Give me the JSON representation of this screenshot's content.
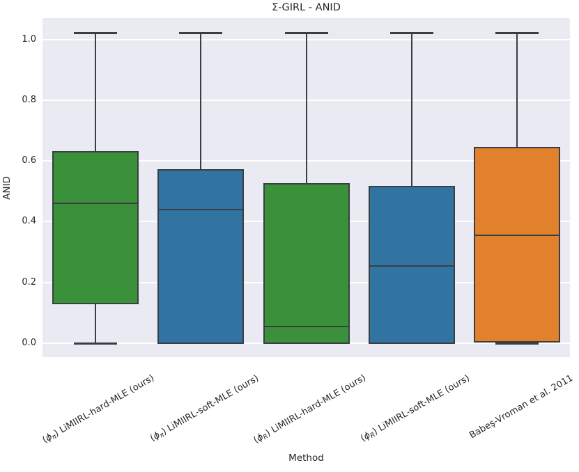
{
  "chart_data": {
    "type": "box",
    "title": "Σ-GIRL - ANID",
    "xlabel": "Method",
    "ylabel": "ANID",
    "ylim": [
      -0.046,
      1.07
    ],
    "yticks": [
      "0.0",
      "0.2",
      "0.4",
      "0.6",
      "0.8",
      "1.0"
    ],
    "grid": true,
    "legend": "none",
    "categories": [
      "(ϕπ) LiMIIRL-hard-MLE (ours)",
      "(ϕπ) LiMIIRL-soft-MLE (ours)",
      "(ϕR) LiMIIRL-hard-MLE (ours)",
      "(ϕR) LiMIIRL-soft-MLE (ours)",
      "Babeş-Vroman et al. 2011"
    ],
    "boxes": [
      {
        "label_pre": "(",
        "label_phi": "ϕ",
        "label_sub": "π",
        "label_post": ") LiMIIRL-hard-MLE (ours)",
        "color": "#3a913a",
        "whisker_low": 0.0,
        "q1": 0.13,
        "median": 0.46,
        "q3": 0.63,
        "whisker_high": 1.02
      },
      {
        "label_pre": "(",
        "label_phi": "ϕ",
        "label_sub": "π",
        "label_post": ") LiMIIRL-soft-MLE (ours)",
        "color": "#3274a1",
        "whisker_low": 0.0,
        "q1": 0.0,
        "median": 0.44,
        "q3": 0.57,
        "whisker_high": 1.02
      },
      {
        "label_pre": "(",
        "label_phi": "ϕ",
        "label_sub": "R",
        "label_post": ") LiMIIRL-hard-MLE (ours)",
        "color": "#3a913a",
        "whisker_low": 0.0,
        "q1": 0.0,
        "median": 0.055,
        "q3": 0.525,
        "whisker_high": 1.02
      },
      {
        "label_pre": "(",
        "label_phi": "ϕ",
        "label_sub": "R",
        "label_post": ") LiMIIRL-soft-MLE (ours)",
        "color": "#3274a1",
        "whisker_low": 0.0,
        "q1": 0.0,
        "median": 0.255,
        "q3": 0.515,
        "whisker_high": 1.02
      },
      {
        "label_pre": "",
        "label_phi": "",
        "label_sub": "",
        "label_post": "Babeş-Vroman et al. 2011",
        "color": "#e1812c",
        "whisker_low": 0.0,
        "q1": 0.005,
        "median": 0.355,
        "q3": 0.645,
        "whisker_high": 1.02
      }
    ],
    "colors": {
      "plot_background": "#eaeaf2",
      "gridline": "#ffffff",
      "edge": "#3a3e43",
      "green": "#3a913a",
      "blue": "#3274a1",
      "orange": "#e1812c",
      "text": "#262626"
    }
  }
}
